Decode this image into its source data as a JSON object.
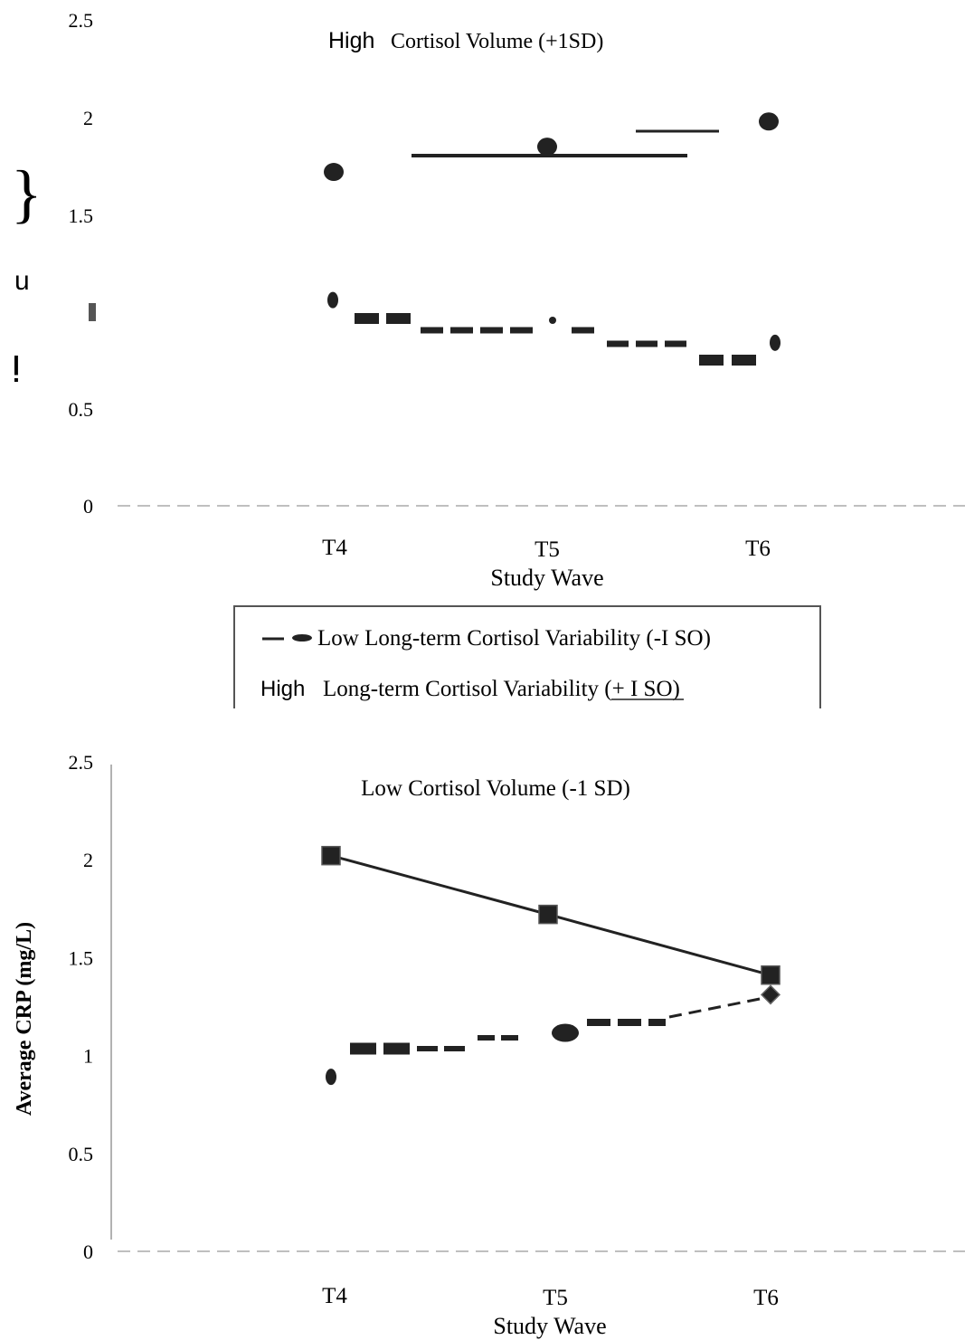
{
  "chart_data": [
    {
      "type": "line",
      "title": "High Cortisol Volume (+1 SD)",
      "title_prefix": "High",
      "title_rest": "Cortisol Volume (+1SD)",
      "xlabel": "Study Wave",
      "ylabel_glyphs": [
        "}",
        "u",
        "ⵑ"
      ],
      "categories": [
        "T4",
        "T5",
        "T6"
      ],
      "yticks": [
        "2.5",
        "2",
        "1.5",
        "0.5",
        "0"
      ],
      "ylim": [
        0,
        2.5
      ],
      "series": [
        {
          "name": "Low Long-term Cortisol Variability (-I SO)",
          "style": "dashed",
          "values": [
            1.72,
            1.85,
            1.98
          ]
        },
        {
          "name": "High Long-term Cortisol Variability (+ I SO)",
          "style": "solid",
          "values": [
            1.06,
            0.95,
            0.84
          ]
        }
      ],
      "legend": {
        "position": "bottom",
        "item1": "Low Long-term Cortisol Variability (-I SO)",
        "item2_prefix": "High",
        "item2_rest": "Long-term Cortisol Variability (+ I SO)"
      }
    },
    {
      "type": "line",
      "title": "Low Cortisol Volume (-1 SD)",
      "xlabel": "Study Wave",
      "ylabel": "Average CRP (mg/L)",
      "categories": [
        "T4",
        "T5",
        "T6"
      ],
      "yticks": [
        "2.5",
        "2",
        "1.5",
        "1",
        "0.5",
        "0"
      ],
      "ylim": [
        0,
        2.5
      ],
      "series": [
        {
          "name": "High Long-term Cortisol Variability (+ I SO)",
          "style": "solid",
          "marker": "square",
          "values": [
            2.02,
            1.72,
            1.41
          ]
        },
        {
          "name": "Low Long-term Cortisol Variability (-I SO)",
          "style": "dashed",
          "marker": "circle",
          "values": [
            0.9,
            1.12,
            1.31
          ]
        }
      ]
    }
  ]
}
